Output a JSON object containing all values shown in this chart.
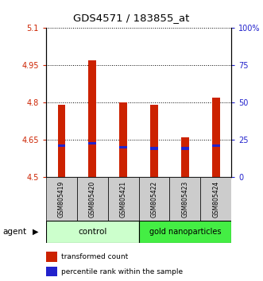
{
  "title": "GDS4571 / 183855_at",
  "samples": [
    "GSM805419",
    "GSM805420",
    "GSM805421",
    "GSM805422",
    "GSM805423",
    "GSM805424"
  ],
  "bar_bottoms": [
    4.5,
    4.5,
    4.5,
    4.5,
    4.5,
    4.5
  ],
  "bar_tops": [
    4.79,
    4.97,
    4.8,
    4.79,
    4.66,
    4.82
  ],
  "percentile_values": [
    4.625,
    4.635,
    4.62,
    4.615,
    4.615,
    4.625
  ],
  "ylim_left": [
    4.5,
    5.1
  ],
  "ylim_right": [
    0,
    100
  ],
  "yticks_left": [
    4.5,
    4.65,
    4.8,
    4.95,
    5.1
  ],
  "yticks_right": [
    0,
    25,
    50,
    75,
    100
  ],
  "ytick_labels_left": [
    "4.5",
    "4.65",
    "4.8",
    "4.95",
    "5.1"
  ],
  "ytick_labels_right": [
    "0",
    "25",
    "50",
    "75",
    "100%"
  ],
  "bar_color": "#cc2200",
  "percentile_color": "#2222cc",
  "bar_width": 0.25,
  "control_color": "#ccffcc",
  "gold_color": "#44ee44",
  "sample_box_color": "#cccccc",
  "legend_items": [
    {
      "label": "transformed count",
      "color": "#cc2200"
    },
    {
      "label": "percentile rank within the sample",
      "color": "#2222cc"
    }
  ]
}
